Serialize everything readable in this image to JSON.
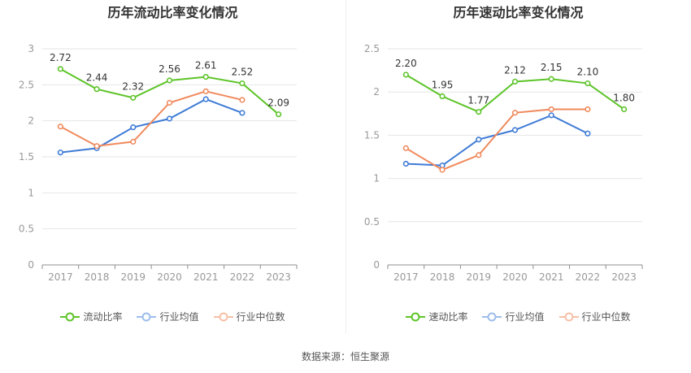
{
  "footer": {
    "source": "数据来源：恒生聚源"
  },
  "colors": {
    "main": "#5dc429",
    "avg": "#3e7bd6",
    "median": "#f08a5d",
    "grid": "#e6e6e6",
    "axis": "#999999"
  },
  "chart_data": [
    {
      "type": "line",
      "title": "历年流动比率变化情况",
      "categories": [
        "2017",
        "2018",
        "2019",
        "2020",
        "2021",
        "2022",
        "2023"
      ],
      "ylim": [
        0,
        3
      ],
      "yticks": [
        "0",
        "0.5",
        "1",
        "1.5",
        "2",
        "2.5",
        "3"
      ],
      "grid": true,
      "legend_position": "bottom",
      "series": [
        {
          "name": "流动比率",
          "key": "main",
          "values": [
            2.72,
            2.44,
            2.32,
            2.56,
            2.61,
            2.52,
            2.09
          ],
          "labels": [
            "2.72",
            "2.44",
            "2.32",
            "2.56",
            "2.61",
            "2.52",
            "2.09"
          ]
        },
        {
          "name": "行业均值",
          "key": "avg",
          "values": [
            1.56,
            1.62,
            1.91,
            2.03,
            2.3,
            2.11,
            null
          ]
        },
        {
          "name": "行业中位数",
          "key": "median",
          "values": [
            1.92,
            1.65,
            1.71,
            2.25,
            2.41,
            2.29,
            null
          ]
        }
      ]
    },
    {
      "type": "line",
      "title": "历年速动比率变化情况",
      "categories": [
        "2017",
        "2018",
        "2019",
        "2020",
        "2021",
        "2022",
        "2023"
      ],
      "ylim": [
        0,
        2.5
      ],
      "yticks": [
        "0",
        "0.5",
        "1",
        "1.5",
        "2",
        "2.5"
      ],
      "grid": true,
      "legend_position": "bottom",
      "series": [
        {
          "name": "速动比率",
          "key": "main",
          "values": [
            2.2,
            1.95,
            1.77,
            2.12,
            2.15,
            2.1,
            1.8
          ],
          "labels": [
            "2.20",
            "1.95",
            "1.77",
            "2.12",
            "2.15",
            "2.10",
            "1.80"
          ]
        },
        {
          "name": "行业均值",
          "key": "avg",
          "values": [
            1.17,
            1.15,
            1.45,
            1.56,
            1.73,
            1.52,
            null
          ]
        },
        {
          "name": "行业中位数",
          "key": "median",
          "values": [
            1.35,
            1.1,
            1.27,
            1.76,
            1.8,
            1.8,
            null
          ]
        }
      ]
    }
  ]
}
